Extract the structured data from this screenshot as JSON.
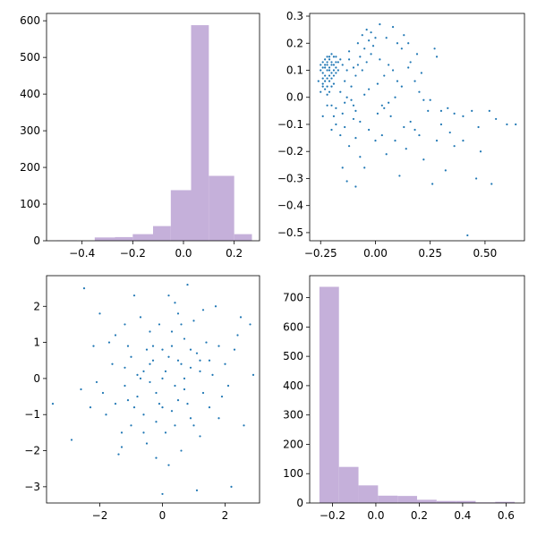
{
  "chart_data": [
    {
      "type": "histogram",
      "title": "",
      "xlabel": "",
      "ylabel": "",
      "color": "#c5b0da",
      "bins": [
        {
          "x0": -0.5,
          "x1": -0.42,
          "count": 1
        },
        {
          "x0": -0.42,
          "x1": -0.35,
          "count": 0
        },
        {
          "x0": -0.35,
          "x1": -0.27,
          "count": 9
        },
        {
          "x0": -0.27,
          "x1": -0.2,
          "count": 10
        },
        {
          "x0": -0.2,
          "x1": -0.12,
          "count": 18
        },
        {
          "x0": -0.12,
          "x1": -0.05,
          "count": 40
        },
        {
          "x0": -0.05,
          "x1": 0.03,
          "count": 138
        },
        {
          "x0": 0.03,
          "x1": 0.1,
          "count": 588
        },
        {
          "x0": 0.1,
          "x1": 0.2,
          "count": 177
        },
        {
          "x0": 0.2,
          "x1": 0.27,
          "count": 18
        }
      ],
      "xlim": [
        -0.54,
        0.3
      ],
      "ylim": [
        0,
        620
      ],
      "xticks": [
        -0.4,
        -0.2,
        0.0,
        0.2
      ],
      "xtick_labels": [
        "−0.4",
        "−0.2",
        "0.0",
        "0.2"
      ],
      "yticks": [
        0,
        100,
        200,
        300,
        400,
        500,
        600
      ],
      "ytick_labels": [
        "0",
        "100",
        "200",
        "300",
        "400",
        "500",
        "600"
      ]
    },
    {
      "type": "scatter",
      "title": "",
      "xlabel": "",
      "ylabel": "",
      "color": "#1f77b4",
      "xlim": [
        -0.3,
        0.68
      ],
      "ylim": [
        -0.53,
        0.31
      ],
      "xticks": [
        -0.25,
        0.0,
        0.25,
        0.5
      ],
      "xtick_labels": [
        "−0.25",
        "0.00",
        "0.25",
        "0.50"
      ],
      "yticks": [
        -0.5,
        -0.4,
        -0.3,
        -0.2,
        -0.1,
        0.0,
        0.1,
        0.2,
        0.3
      ],
      "ytick_labels": [
        "−0.5",
        "−0.4",
        "−0.3",
        "−0.2",
        "−0.1",
        "0.0",
        "0.1",
        "0.2",
        "0.3"
      ],
      "points": [
        [
          -0.22,
          0.1
        ],
        [
          -0.2,
          0.12
        ],
        [
          -0.24,
          0.05
        ],
        [
          -0.21,
          0.14
        ],
        [
          -0.23,
          0.08
        ],
        [
          -0.19,
          0.15
        ],
        [
          -0.25,
          0.02
        ],
        [
          -0.22,
          0.13
        ],
        [
          -0.18,
          0.11
        ],
        [
          -0.24,
          0.09
        ],
        [
          -0.21,
          0.06
        ],
        [
          -0.2,
          0.16
        ],
        [
          -0.23,
          0.12
        ],
        [
          -0.19,
          0.08
        ],
        [
          -0.22,
          0.04
        ],
        [
          -0.26,
          0.06
        ],
        [
          -0.17,
          0.13
        ],
        [
          -0.21,
          0.1
        ],
        [
          -0.24,
          0.13
        ],
        [
          -0.2,
          0.07
        ],
        [
          -0.18,
          0.15
        ],
        [
          -0.23,
          0.03
        ],
        [
          -0.22,
          0.15
        ],
        [
          -0.25,
          0.1
        ],
        [
          -0.19,
          0.12
        ],
        [
          -0.21,
          0.02
        ],
        [
          -0.16,
          0.14
        ],
        [
          -0.23,
          0.11
        ],
        [
          -0.2,
          0.09
        ],
        [
          -0.24,
          0.07
        ],
        [
          -0.22,
          0.01
        ],
        [
          -0.18,
          0.09
        ],
        [
          -0.21,
          0.15
        ],
        [
          -0.25,
          0.12
        ],
        [
          -0.19,
          0.05
        ],
        [
          -0.23,
          0.14
        ],
        [
          -0.17,
          0.1
        ],
        [
          -0.22,
          0.07
        ],
        [
          -0.2,
          0.13
        ],
        [
          -0.24,
          0.11
        ],
        [
          -0.15,
          0.12
        ],
        [
          -0.13,
          0.1
        ],
        [
          -0.14,
          0.06
        ],
        [
          -0.12,
          0.14
        ],
        [
          -0.1,
          0.11
        ],
        [
          -0.11,
          0.04
        ],
        [
          -0.08,
          0.12
        ],
        [
          -0.09,
          0.08
        ],
        [
          -0.07,
          0.15
        ],
        [
          -0.06,
          0.1
        ],
        [
          -0.05,
          0.18
        ],
        [
          -0.04,
          0.13
        ],
        [
          -0.03,
          0.21
        ],
        [
          -0.02,
          0.16
        ],
        [
          -0.06,
          0.23
        ],
        [
          -0.04,
          0.25
        ],
        [
          -0.01,
          0.19
        ],
        [
          0.02,
          0.14
        ],
        [
          0.0,
          0.22
        ],
        [
          -0.08,
          0.2
        ],
        [
          -0.12,
          0.17
        ],
        [
          -0.16,
          0.02
        ],
        [
          -0.14,
          -0.02
        ],
        [
          -0.18,
          -0.04
        ],
        [
          -0.11,
          -0.01
        ],
        [
          -0.13,
          0.0
        ],
        [
          -0.1,
          -0.03
        ],
        [
          -0.2,
          -0.03
        ],
        [
          -0.24,
          -0.07
        ],
        [
          -0.15,
          -0.06
        ],
        [
          -0.09,
          -0.05
        ],
        [
          -0.05,
          0.01
        ],
        [
          -0.03,
          0.03
        ],
        [
          0.01,
          0.05
        ],
        [
          0.04,
          0.08
        ],
        [
          0.06,
          0.12
        ],
        [
          0.08,
          0.1
        ],
        [
          0.1,
          0.06
        ],
        [
          0.12,
          0.04
        ],
        [
          0.15,
          0.11
        ],
        [
          0.18,
          0.06
        ],
        [
          0.2,
          0.02
        ],
        [
          0.22,
          -0.01
        ],
        [
          0.03,
          -0.03
        ],
        [
          0.06,
          -0.02
        ],
        [
          0.09,
          0.0
        ],
        [
          0.05,
          0.22
        ],
        [
          0.08,
          0.26
        ],
        [
          0.1,
          0.2
        ],
        [
          0.13,
          0.23
        ],
        [
          0.02,
          0.27
        ],
        [
          -0.02,
          0.24
        ],
        [
          0.15,
          0.2
        ],
        [
          0.16,
          0.13
        ],
        [
          0.19,
          0.16
        ],
        [
          0.27,
          0.18
        ],
        [
          0.28,
          0.15
        ],
        [
          0.21,
          0.09
        ],
        [
          0.25,
          -0.01
        ],
        [
          0.3,
          -0.05
        ],
        [
          0.33,
          -0.04
        ],
        [
          0.36,
          -0.06
        ],
        [
          0.4,
          -0.07
        ],
        [
          0.44,
          -0.05
        ],
        [
          0.47,
          -0.11
        ],
        [
          0.52,
          -0.05
        ],
        [
          0.55,
          -0.08
        ],
        [
          0.6,
          -0.1
        ],
        [
          0.64,
          -0.1
        ],
        [
          0.48,
          -0.2
        ],
        [
          0.53,
          -0.32
        ],
        [
          0.46,
          -0.3
        ],
        [
          0.42,
          -0.51
        ],
        [
          0.32,
          -0.27
        ],
        [
          0.26,
          -0.32
        ],
        [
          0.28,
          -0.16
        ],
        [
          0.36,
          -0.18
        ],
        [
          0.4,
          -0.16
        ],
        [
          0.22,
          -0.23
        ],
        [
          0.18,
          -0.12
        ],
        [
          0.16,
          -0.09
        ],
        [
          0.14,
          -0.19
        ],
        [
          0.11,
          -0.29
        ],
        [
          0.09,
          -0.16
        ],
        [
          0.07,
          -0.07
        ],
        [
          0.05,
          -0.21
        ],
        [
          0.03,
          -0.14
        ],
        [
          0.0,
          -0.16
        ],
        [
          -0.03,
          -0.12
        ],
        [
          -0.05,
          -0.26
        ],
        [
          -0.07,
          -0.22
        ],
        [
          -0.09,
          -0.15
        ],
        [
          -0.1,
          -0.08
        ],
        [
          -0.12,
          -0.18
        ],
        [
          -0.13,
          -0.31
        ],
        [
          -0.09,
          -0.33
        ],
        [
          -0.15,
          -0.26
        ],
        [
          -0.16,
          -0.14
        ],
        [
          -0.18,
          -0.1
        ],
        [
          -0.2,
          -0.12
        ],
        [
          -0.22,
          -0.03
        ],
        [
          -0.19,
          -0.07
        ],
        [
          -0.14,
          -0.11
        ],
        [
          -0.07,
          -0.09
        ],
        [
          0.01,
          -0.06
        ],
        [
          0.04,
          -0.04
        ],
        [
          0.13,
          -0.11
        ],
        [
          0.2,
          -0.14
        ],
        [
          0.24,
          -0.05
        ],
        [
          0.3,
          -0.1
        ],
        [
          0.34,
          -0.13
        ],
        [
          0.12,
          0.18
        ],
        [
          -0.21,
          0.11
        ],
        [
          -0.19,
          0.1
        ],
        [
          -0.23,
          0.06
        ],
        [
          -0.2,
          0.04
        ],
        [
          -0.18,
          0.13
        ],
        [
          -0.22,
          0.12
        ],
        [
          -0.24,
          0.04
        ],
        [
          -0.21,
          0.08
        ]
      ]
    },
    {
      "type": "scatter",
      "title": "",
      "xlabel": "",
      "ylabel": "",
      "color": "#1f77b4",
      "xlim": [
        -3.7,
        3.1
      ],
      "ylim": [
        -3.45,
        2.85
      ],
      "xticks": [
        -2,
        0,
        2
      ],
      "xtick_labels": [
        "−2",
        "0",
        "2"
      ],
      "yticks": [
        -3,
        -2,
        -1,
        0,
        1,
        2
      ],
      "ytick_labels": [
        "−3",
        "−2",
        "−1",
        "0",
        "1",
        "2"
      ],
      "points": [
        [
          0.1,
          0.2
        ],
        [
          -0.5,
          0.8
        ],
        [
          0.7,
          -0.3
        ],
        [
          1.2,
          0.5
        ],
        [
          -1.1,
          -0.6
        ],
        [
          0.3,
          1.3
        ],
        [
          -0.2,
          -1.2
        ],
        [
          1.8,
          0.9
        ],
        [
          -1.6,
          0.4
        ],
        [
          0.9,
          -1.1
        ],
        [
          -0.7,
          1.7
        ],
        [
          1.5,
          -0.8
        ],
        [
          -1.3,
          -1.5
        ],
        [
          0.4,
          2.1
        ],
        [
          2.1,
          -0.2
        ],
        [
          -2.2,
          0.9
        ],
        [
          0.6,
          -2.0
        ],
        [
          -0.4,
          -0.1
        ],
        [
          1.0,
          1.6
        ],
        [
          -1.8,
          -1.0
        ],
        [
          2.4,
          1.2
        ],
        [
          -2.6,
          -0.3
        ],
        [
          0.2,
          -2.4
        ],
        [
          -0.9,
          2.3
        ],
        [
          1.7,
          2.0
        ],
        [
          -2.0,
          1.8
        ],
        [
          2.6,
          -1.3
        ],
        [
          -1.4,
          -2.1
        ],
        [
          0.8,
          2.6
        ],
        [
          -3.5,
          -0.7
        ],
        [
          2.9,
          0.1
        ],
        [
          2.2,
          -3.0
        ],
        [
          1.1,
          -3.1
        ],
        [
          0.0,
          -3.2
        ],
        [
          -2.5,
          2.5
        ],
        [
          -2.9,
          -1.7
        ],
        [
          2.5,
          1.7
        ],
        [
          2.8,
          1.5
        ],
        [
          -0.3,
          0.5
        ],
        [
          0.5,
          -0.6
        ],
        [
          -0.8,
          0.1
        ],
        [
          0.9,
          0.3
        ],
        [
          -0.1,
          -0.7
        ],
        [
          0.3,
          0.9
        ],
        [
          -1.0,
          0.6
        ],
        [
          1.3,
          -0.4
        ],
        [
          -0.6,
          -1.0
        ],
        [
          0.7,
          1.1
        ],
        [
          -1.2,
          -0.2
        ],
        [
          1.6,
          0.1
        ],
        [
          0.0,
          0.0
        ],
        [
          -0.4,
          0.4
        ],
        [
          0.4,
          -0.2
        ],
        [
          0.2,
          0.6
        ],
        [
          -0.2,
          -0.4
        ],
        [
          0.6,
          0.4
        ],
        [
          -0.6,
          0.2
        ],
        [
          0.8,
          -0.7
        ],
        [
          -0.8,
          -0.5
        ],
        [
          1.1,
          0.7
        ],
        [
          -1.1,
          0.9
        ],
        [
          1.4,
          1.0
        ],
        [
          -1.5,
          1.2
        ],
        [
          1.9,
          -0.5
        ],
        [
          -1.9,
          -0.4
        ],
        [
          0.5,
          1.8
        ],
        [
          -0.5,
          -1.8
        ],
        [
          1.2,
          -1.6
        ],
        [
          -1.2,
          1.5
        ],
        [
          2.0,
          0.4
        ],
        [
          -2.1,
          -0.1
        ],
        [
          0.1,
          -1.5
        ],
        [
          -0.1,
          1.5
        ],
        [
          1.0,
          -1.3
        ],
        [
          -1.0,
          -1.3
        ],
        [
          0.3,
          -0.9
        ],
        [
          -0.3,
          0.9
        ],
        [
          0.9,
          0.8
        ],
        [
          -0.9,
          -0.8
        ],
        [
          1.5,
          0.5
        ],
        [
          -1.5,
          -0.7
        ],
        [
          0.6,
          1.5
        ],
        [
          -0.6,
          -1.5
        ],
        [
          1.8,
          -1.1
        ],
        [
          -1.7,
          1.0
        ],
        [
          0.2,
          2.3
        ],
        [
          -0.2,
          -2.2
        ],
        [
          2.3,
          0.8
        ],
        [
          -2.3,
          -0.8
        ],
        [
          1.3,
          1.9
        ],
        [
          -1.3,
          -1.9
        ],
        [
          0.4,
          -1.3
        ],
        [
          -0.4,
          1.3
        ],
        [
          0.7,
          0.0
        ],
        [
          -0.7,
          0.0
        ],
        [
          0.0,
          0.8
        ],
        [
          0.0,
          -0.8
        ],
        [
          1.2,
          0.2
        ],
        [
          -1.2,
          0.3
        ],
        [
          0.5,
          0.5
        ]
      ]
    },
    {
      "type": "histogram",
      "title": "",
      "xlabel": "",
      "ylabel": "",
      "color": "#c5b0da",
      "bins": [
        {
          "x0": -0.26,
          "x1": -0.17,
          "count": 737
        },
        {
          "x0": -0.17,
          "x1": -0.08,
          "count": 123
        },
        {
          "x0": -0.08,
          "x1": 0.01,
          "count": 60
        },
        {
          "x0": 0.01,
          "x1": 0.1,
          "count": 25
        },
        {
          "x0": 0.1,
          "x1": 0.19,
          "count": 24
        },
        {
          "x0": 0.19,
          "x1": 0.28,
          "count": 11
        },
        {
          "x0": 0.28,
          "x1": 0.37,
          "count": 7
        },
        {
          "x0": 0.37,
          "x1": 0.46,
          "count": 7
        },
        {
          "x0": 0.46,
          "x1": 0.55,
          "count": 2
        },
        {
          "x0": 0.55,
          "x1": 0.64,
          "count": 4
        }
      ],
      "xlim": [
        -0.305,
        0.685
      ],
      "ylim": [
        0,
        775
      ],
      "xticks": [
        -0.2,
        0.0,
        0.2,
        0.4,
        0.6
      ],
      "xtick_labels": [
        "−0.2",
        "0.0",
        "0.2",
        "0.4",
        "0.6"
      ],
      "yticks": [
        0,
        100,
        200,
        300,
        400,
        500,
        600,
        700
      ],
      "ytick_labels": [
        "0",
        "100",
        "200",
        "300",
        "400",
        "500",
        "600",
        "700"
      ]
    }
  ]
}
